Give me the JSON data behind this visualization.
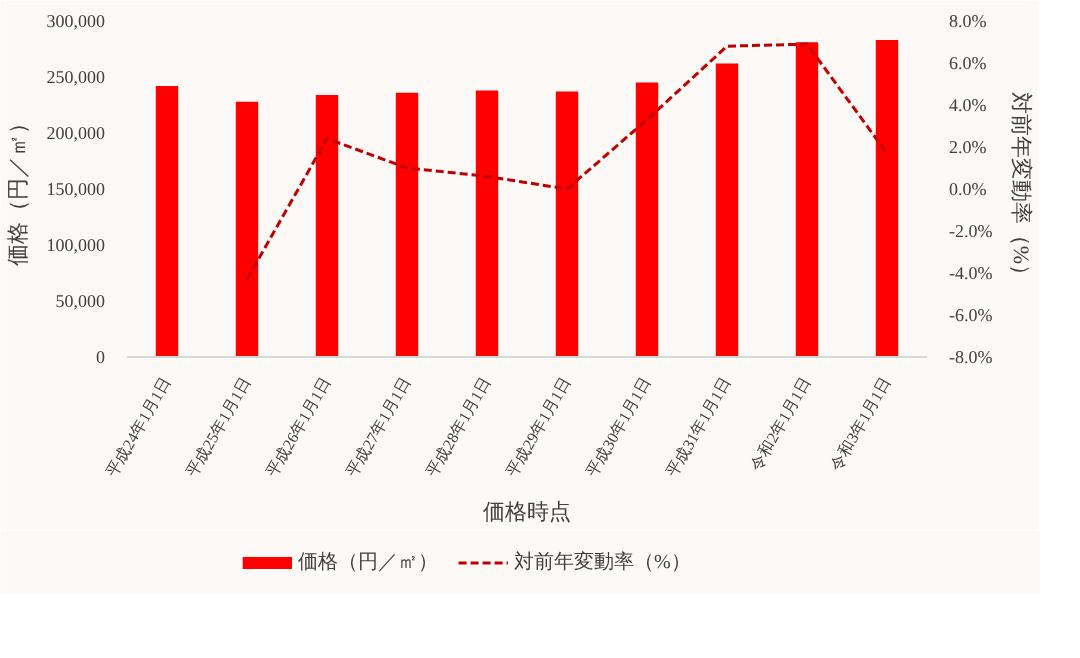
{
  "chart_data": {
    "type": "bar",
    "xlabel": "価格時点",
    "ylabel": "価格（円／㎡）",
    "y2label": "対前年変動率（%）",
    "categories": [
      "平成24年1月1日",
      "平成25年1月1日",
      "平成26年1月1日",
      "平成27年1月1日",
      "平成28年1月1日",
      "平成29年1月1日",
      "平成30年1月1日",
      "平成31年1月1日",
      "令和2年1月1日",
      "令和3年1月1日"
    ],
    "series": [
      {
        "name": "価格（円／㎡）",
        "color": "#ff0000",
        "values": [
          242000,
          228000,
          234000,
          236000,
          238000,
          237000,
          245000,
          262000,
          281000,
          283000
        ]
      },
      {
        "name": "対前年変動率（%）",
        "color": "#c00000",
        "type": "line",
        "axis": "y2",
        "line_style": "dashed",
        "marker": "none",
        "values": [
          null,
          -4.3,
          2.4,
          1.0,
          0.6,
          0.0,
          3.3,
          6.8,
          6.9,
          1.7
        ]
      }
    ],
    "ylim": [
      0,
      300000
    ],
    "yticks": [
      {
        "value": 0,
        "label": "0"
      },
      {
        "value": 50000,
        "label": "50,000"
      },
      {
        "value": 100000,
        "label": "100,000"
      },
      {
        "value": 150000,
        "label": "150,000"
      },
      {
        "value": 200000,
        "label": "200,000"
      },
      {
        "value": 250000,
        "label": "250,000"
      },
      {
        "value": 300000,
        "label": "300,000"
      }
    ],
    "y2lim": [
      -8,
      8
    ],
    "y2ticks": [
      {
        "value": -8,
        "label": "-8.0%"
      },
      {
        "value": -6,
        "label": "-6.0%"
      },
      {
        "value": -4,
        "label": "-4.0%"
      },
      {
        "value": -2,
        "label": "-2.0%"
      },
      {
        "value": 0,
        "label": "0.0%"
      },
      {
        "value": 2,
        "label": "2.0%"
      },
      {
        "value": 4,
        "label": "4.0%"
      },
      {
        "value": 6,
        "label": "6.0%"
      },
      {
        "value": 8,
        "label": "8.0%"
      }
    ],
    "grid": false,
    "legend": "bottom"
  }
}
